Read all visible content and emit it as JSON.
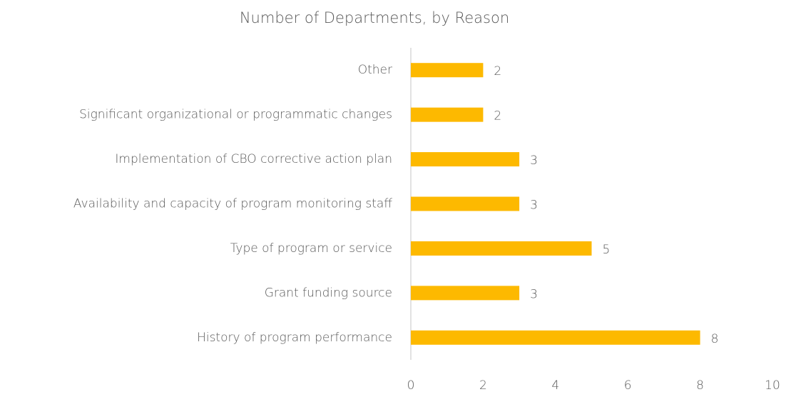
{
  "chart_data": {
    "type": "barh",
    "title": "Number of Departments, by Reason",
    "categories": [
      "Other",
      "Significant organizational or programmatic changes",
      "Implementation of CBO corrective action plan",
      "Availability and capacity of program monitoring staff",
      "Type of program or service",
      "Grant funding source",
      "History of program performance"
    ],
    "values": [
      2,
      2,
      3,
      3,
      5,
      3,
      8
    ],
    "color": "#FDB900",
    "xlim": [
      0,
      10
    ],
    "xticks": [
      0,
      2,
      4,
      6,
      8,
      10
    ],
    "grid": false
  }
}
